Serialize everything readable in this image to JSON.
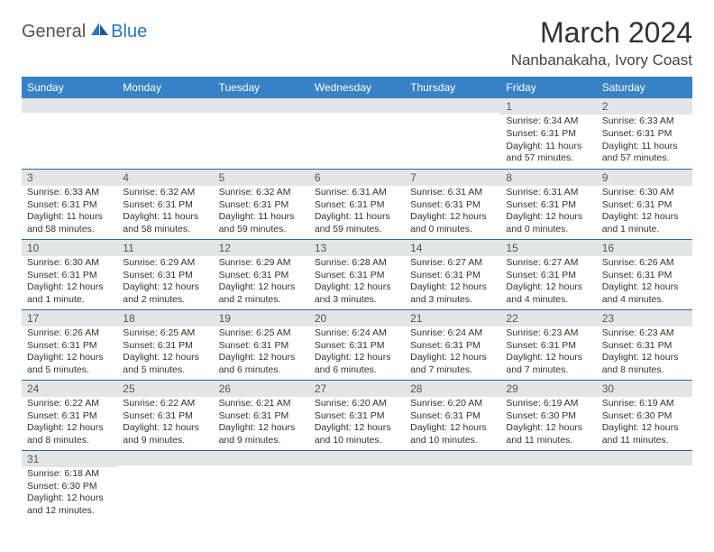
{
  "logo": {
    "part1": "General",
    "part2": "Blue"
  },
  "title": "March 2024",
  "location": "Nanbanakaha, Ivory Coast",
  "colors": {
    "header_bg": "#3682c4",
    "header_text": "#ffffff",
    "daynum_bg": "#e4e5e6",
    "row_border": "#2b6aa3",
    "logo_blue": "#2976b9"
  },
  "weekdays": [
    "Sunday",
    "Monday",
    "Tuesday",
    "Wednesday",
    "Thursday",
    "Friday",
    "Saturday"
  ],
  "weeks": [
    [
      {
        "n": "",
        "sr": "",
        "ss": "",
        "dl": ""
      },
      {
        "n": "",
        "sr": "",
        "ss": "",
        "dl": ""
      },
      {
        "n": "",
        "sr": "",
        "ss": "",
        "dl": ""
      },
      {
        "n": "",
        "sr": "",
        "ss": "",
        "dl": ""
      },
      {
        "n": "",
        "sr": "",
        "ss": "",
        "dl": ""
      },
      {
        "n": "1",
        "sr": "Sunrise: 6:34 AM",
        "ss": "Sunset: 6:31 PM",
        "dl": "Daylight: 11 hours and 57 minutes."
      },
      {
        "n": "2",
        "sr": "Sunrise: 6:33 AM",
        "ss": "Sunset: 6:31 PM",
        "dl": "Daylight: 11 hours and 57 minutes."
      }
    ],
    [
      {
        "n": "3",
        "sr": "Sunrise: 6:33 AM",
        "ss": "Sunset: 6:31 PM",
        "dl": "Daylight: 11 hours and 58 minutes."
      },
      {
        "n": "4",
        "sr": "Sunrise: 6:32 AM",
        "ss": "Sunset: 6:31 PM",
        "dl": "Daylight: 11 hours and 58 minutes."
      },
      {
        "n": "5",
        "sr": "Sunrise: 6:32 AM",
        "ss": "Sunset: 6:31 PM",
        "dl": "Daylight: 11 hours and 59 minutes."
      },
      {
        "n": "6",
        "sr": "Sunrise: 6:31 AM",
        "ss": "Sunset: 6:31 PM",
        "dl": "Daylight: 11 hours and 59 minutes."
      },
      {
        "n": "7",
        "sr": "Sunrise: 6:31 AM",
        "ss": "Sunset: 6:31 PM",
        "dl": "Daylight: 12 hours and 0 minutes."
      },
      {
        "n": "8",
        "sr": "Sunrise: 6:31 AM",
        "ss": "Sunset: 6:31 PM",
        "dl": "Daylight: 12 hours and 0 minutes."
      },
      {
        "n": "9",
        "sr": "Sunrise: 6:30 AM",
        "ss": "Sunset: 6:31 PM",
        "dl": "Daylight: 12 hours and 1 minute."
      }
    ],
    [
      {
        "n": "10",
        "sr": "Sunrise: 6:30 AM",
        "ss": "Sunset: 6:31 PM",
        "dl": "Daylight: 12 hours and 1 minute."
      },
      {
        "n": "11",
        "sr": "Sunrise: 6:29 AM",
        "ss": "Sunset: 6:31 PM",
        "dl": "Daylight: 12 hours and 2 minutes."
      },
      {
        "n": "12",
        "sr": "Sunrise: 6:29 AM",
        "ss": "Sunset: 6:31 PM",
        "dl": "Daylight: 12 hours and 2 minutes."
      },
      {
        "n": "13",
        "sr": "Sunrise: 6:28 AM",
        "ss": "Sunset: 6:31 PM",
        "dl": "Daylight: 12 hours and 3 minutes."
      },
      {
        "n": "14",
        "sr": "Sunrise: 6:27 AM",
        "ss": "Sunset: 6:31 PM",
        "dl": "Daylight: 12 hours and 3 minutes."
      },
      {
        "n": "15",
        "sr": "Sunrise: 6:27 AM",
        "ss": "Sunset: 6:31 PM",
        "dl": "Daylight: 12 hours and 4 minutes."
      },
      {
        "n": "16",
        "sr": "Sunrise: 6:26 AM",
        "ss": "Sunset: 6:31 PM",
        "dl": "Daylight: 12 hours and 4 minutes."
      }
    ],
    [
      {
        "n": "17",
        "sr": "Sunrise: 6:26 AM",
        "ss": "Sunset: 6:31 PM",
        "dl": "Daylight: 12 hours and 5 minutes."
      },
      {
        "n": "18",
        "sr": "Sunrise: 6:25 AM",
        "ss": "Sunset: 6:31 PM",
        "dl": "Daylight: 12 hours and 5 minutes."
      },
      {
        "n": "19",
        "sr": "Sunrise: 6:25 AM",
        "ss": "Sunset: 6:31 PM",
        "dl": "Daylight: 12 hours and 6 minutes."
      },
      {
        "n": "20",
        "sr": "Sunrise: 6:24 AM",
        "ss": "Sunset: 6:31 PM",
        "dl": "Daylight: 12 hours and 6 minutes."
      },
      {
        "n": "21",
        "sr": "Sunrise: 6:24 AM",
        "ss": "Sunset: 6:31 PM",
        "dl": "Daylight: 12 hours and 7 minutes."
      },
      {
        "n": "22",
        "sr": "Sunrise: 6:23 AM",
        "ss": "Sunset: 6:31 PM",
        "dl": "Daylight: 12 hours and 7 minutes."
      },
      {
        "n": "23",
        "sr": "Sunrise: 6:23 AM",
        "ss": "Sunset: 6:31 PM",
        "dl": "Daylight: 12 hours and 8 minutes."
      }
    ],
    [
      {
        "n": "24",
        "sr": "Sunrise: 6:22 AM",
        "ss": "Sunset: 6:31 PM",
        "dl": "Daylight: 12 hours and 8 minutes."
      },
      {
        "n": "25",
        "sr": "Sunrise: 6:22 AM",
        "ss": "Sunset: 6:31 PM",
        "dl": "Daylight: 12 hours and 9 minutes."
      },
      {
        "n": "26",
        "sr": "Sunrise: 6:21 AM",
        "ss": "Sunset: 6:31 PM",
        "dl": "Daylight: 12 hours and 9 minutes."
      },
      {
        "n": "27",
        "sr": "Sunrise: 6:20 AM",
        "ss": "Sunset: 6:31 PM",
        "dl": "Daylight: 12 hours and 10 minutes."
      },
      {
        "n": "28",
        "sr": "Sunrise: 6:20 AM",
        "ss": "Sunset: 6:31 PM",
        "dl": "Daylight: 12 hours and 10 minutes."
      },
      {
        "n": "29",
        "sr": "Sunrise: 6:19 AM",
        "ss": "Sunset: 6:30 PM",
        "dl": "Daylight: 12 hours and 11 minutes."
      },
      {
        "n": "30",
        "sr": "Sunrise: 6:19 AM",
        "ss": "Sunset: 6:30 PM",
        "dl": "Daylight: 12 hours and 11 minutes."
      }
    ],
    [
      {
        "n": "31",
        "sr": "Sunrise: 6:18 AM",
        "ss": "Sunset: 6:30 PM",
        "dl": "Daylight: 12 hours and 12 minutes."
      },
      {
        "n": "",
        "sr": "",
        "ss": "",
        "dl": ""
      },
      {
        "n": "",
        "sr": "",
        "ss": "",
        "dl": ""
      },
      {
        "n": "",
        "sr": "",
        "ss": "",
        "dl": ""
      },
      {
        "n": "",
        "sr": "",
        "ss": "",
        "dl": ""
      },
      {
        "n": "",
        "sr": "",
        "ss": "",
        "dl": ""
      },
      {
        "n": "",
        "sr": "",
        "ss": "",
        "dl": ""
      }
    ]
  ]
}
